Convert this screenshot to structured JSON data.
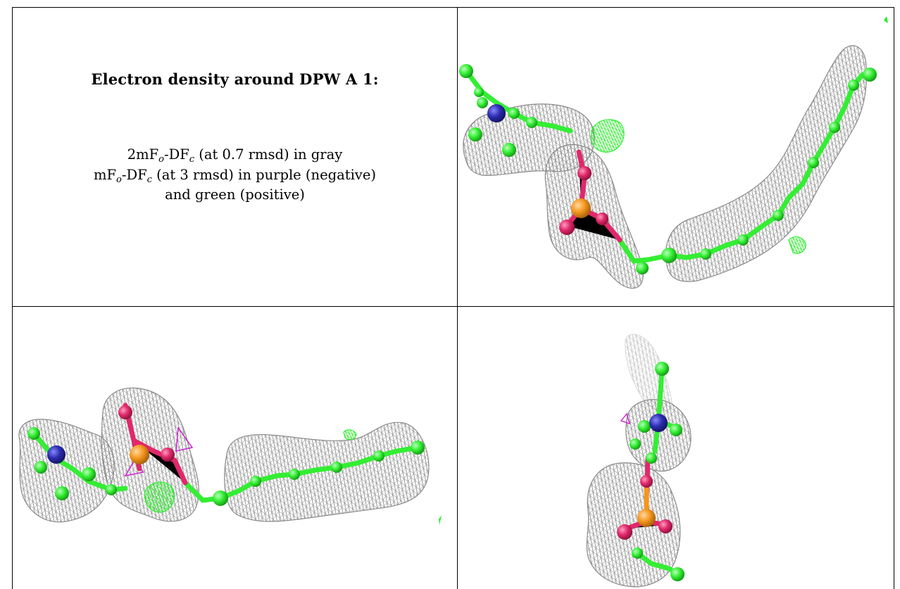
{
  "caption": {
    "title": "Electron density around DPW A 1:",
    "line1_prefix": "2mF",
    "line1_sub1": "o",
    "line1_mid": "-DF",
    "line1_sub2": "c",
    "line1_suffix": " (at 0.7 rmsd) in gray",
    "line2_prefix": "mF",
    "line2_sub1": "o",
    "line2_mid": "-DF",
    "line2_sub2": "c",
    "line2_suffix": " (at 3 rmsd) in purple (negative)",
    "line3": "and green (positive)"
  },
  "colors": {
    "mesh_2fofc": "#8a8a8a",
    "mesh_positive": "#22ee22",
    "mesh_negative": "#d020d0",
    "carbon": "#33ee33",
    "nitrogen": "#2c2cb0",
    "oxygen": "#e0286a",
    "phosphorus": "#f5961e"
  },
  "panels": [
    {
      "view": "view-top-right"
    },
    {
      "view": "view-bottom-left"
    },
    {
      "view": "view-bottom-right"
    }
  ]
}
